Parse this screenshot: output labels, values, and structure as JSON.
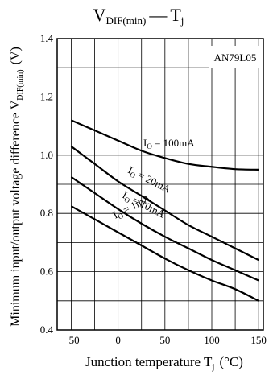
{
  "chart_data": {
    "type": "line",
    "title": {
      "main": "V",
      "sub": "DIF(min)",
      "dash": "—",
      "var": "T",
      "var_sub": "j"
    },
    "ylabel": {
      "main": "Minimum input/output voltage difference  V",
      "sub": "DIF(min)",
      "unit": "(V)"
    },
    "xlabel": {
      "main": "Junction temperature  T",
      "sub": "j",
      "unit": "(°C)"
    },
    "part_number": "AN79L05",
    "xlim": [
      -65,
      155
    ],
    "ylim": [
      0.4,
      1.4
    ],
    "x_ticks": [
      -50,
      0,
      50,
      100,
      150
    ],
    "x_tick_labels": [
      "−50",
      "0",
      "50",
      "100",
      "150"
    ],
    "y_ticks": [
      0.4,
      0.6,
      0.8,
      1.0,
      1.2,
      1.4
    ],
    "y_tick_labels": [
      "0.4",
      "0.6",
      "0.8",
      "1.0",
      "1.2",
      "1.4"
    ],
    "grid": true,
    "series": [
      {
        "label": {
          "main": "I",
          "sub": "O",
          "rest": " = 100mA"
        },
        "x": [
          -50,
          -25,
          0,
          25,
          50,
          75,
          100,
          125,
          150
        ],
        "y": [
          1.12,
          1.085,
          1.05,
          1.015,
          0.99,
          0.97,
          0.96,
          0.952,
          0.95
        ]
      },
      {
        "label": {
          "main": "I",
          "sub": "O",
          "rest": " = 20mA"
        },
        "x": [
          -50,
          -25,
          0,
          25,
          50,
          75,
          100,
          125,
          150
        ],
        "y": [
          1.03,
          0.97,
          0.91,
          0.86,
          0.81,
          0.76,
          0.72,
          0.68,
          0.64
        ]
      },
      {
        "label": {
          "main": "I",
          "sub": "O",
          "rest": " = 10mA"
        },
        "x": [
          -50,
          -25,
          0,
          25,
          50,
          75,
          100,
          125,
          150
        ],
        "y": [
          0.925,
          0.87,
          0.815,
          0.765,
          0.72,
          0.68,
          0.64,
          0.605,
          0.57
        ]
      },
      {
        "label": {
          "main": "I",
          "sub": "O",
          "rest": " = 1mA"
        },
        "x": [
          -50,
          -25,
          0,
          25,
          50,
          75,
          100,
          125,
          150
        ],
        "y": [
          0.825,
          0.78,
          0.735,
          0.69,
          0.645,
          0.605,
          0.57,
          0.54,
          0.5
        ]
      }
    ]
  }
}
